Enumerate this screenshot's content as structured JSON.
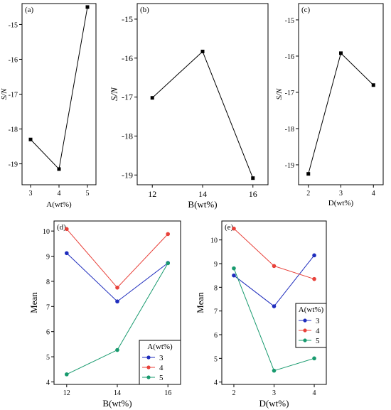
{
  "chart_data": [
    {
      "panel": "(a)",
      "type": "line",
      "xlabel": "A(wt%)",
      "ylabel": "S/N",
      "categories": [
        "3",
        "4",
        "5"
      ],
      "x": [
        3,
        4,
        5
      ],
      "xlim": [
        2.7,
        5.3
      ],
      "ylim": [
        -19.6,
        -14.4
      ],
      "yticks": [
        -19,
        -18,
        -17,
        -16,
        -15
      ],
      "series": [
        {
          "values": [
            -18.3,
            -19.15,
            -14.5
          ],
          "color": "#000000",
          "marker": "square"
        }
      ],
      "grid": false
    },
    {
      "panel": "(b)",
      "type": "line",
      "xlabel": "B(wt%)",
      "ylabel": "S/N",
      "categories": [
        "12",
        "14",
        "16"
      ],
      "x": [
        12,
        14,
        16
      ],
      "xlim": [
        11.4,
        16.6
      ],
      "ylim": [
        -19.25,
        -14.6
      ],
      "yticks": [
        -19,
        -18,
        -17,
        -16,
        -15
      ],
      "series": [
        {
          "values": [
            -17.02,
            -15.83,
            -19.08
          ],
          "color": "#000000",
          "marker": "square"
        }
      ],
      "grid": false
    },
    {
      "panel": "(c)",
      "type": "line",
      "xlabel": "D(wt%)",
      "ylabel": "S/N",
      "categories": [
        "2",
        "3",
        "4"
      ],
      "x": [
        2,
        3,
        4
      ],
      "xlim": [
        1.7,
        4.3
      ],
      "ylim": [
        -19.55,
        -14.55
      ],
      "yticks": [
        -19,
        -18,
        -17,
        -16,
        -15
      ],
      "series": [
        {
          "values": [
            -19.25,
            -15.92,
            -16.8
          ],
          "color": "#000000",
          "marker": "square"
        }
      ],
      "grid": false
    },
    {
      "panel": "(d)",
      "type": "line",
      "xlabel": "B(wt%)",
      "ylabel": "Mean",
      "categories": [
        "12",
        "14",
        "16"
      ],
      "x": [
        12,
        14,
        16
      ],
      "xlim": [
        11.5,
        16.5
      ],
      "ylim": [
        3.9,
        10.4
      ],
      "yticks": [
        4,
        5,
        6,
        7,
        8,
        9,
        10
      ],
      "legend": {
        "title": "A(wt%)",
        "placement": "bottom-right"
      },
      "series": [
        {
          "name": "3",
          "values": [
            9.12,
            7.2,
            8.73
          ],
          "color": "#1f2dbd",
          "marker": "circle"
        },
        {
          "name": "4",
          "values": [
            10.08,
            7.75,
            9.88
          ],
          "color": "#e8413a",
          "marker": "circle"
        },
        {
          "name": "5",
          "values": [
            4.3,
            5.27,
            8.72
          ],
          "color": "#189a6e",
          "marker": "circle"
        }
      ],
      "grid": false
    },
    {
      "panel": "(e)",
      "type": "line",
      "xlabel": "D(wt%)",
      "ylabel": "Mean",
      "categories": [
        "2",
        "3",
        "4"
      ],
      "x": [
        2,
        3,
        4
      ],
      "xlim": [
        1.7,
        4.3
      ],
      "ylim": [
        3.9,
        10.8
      ],
      "yticks": [
        4,
        5,
        6,
        7,
        8,
        9,
        10
      ],
      "legend": {
        "title": "A(wt%)",
        "placement": "right"
      },
      "series": [
        {
          "name": "3",
          "values": [
            8.5,
            7.2,
            9.35
          ],
          "color": "#1f2dbd",
          "marker": "circle"
        },
        {
          "name": "4",
          "values": [
            10.48,
            8.9,
            8.35
          ],
          "color": "#e8413a",
          "marker": "circle"
        },
        {
          "name": "5",
          "values": [
            8.8,
            4.48,
            5.0
          ],
          "color": "#189a6e",
          "marker": "circle"
        }
      ],
      "grid": false
    }
  ]
}
